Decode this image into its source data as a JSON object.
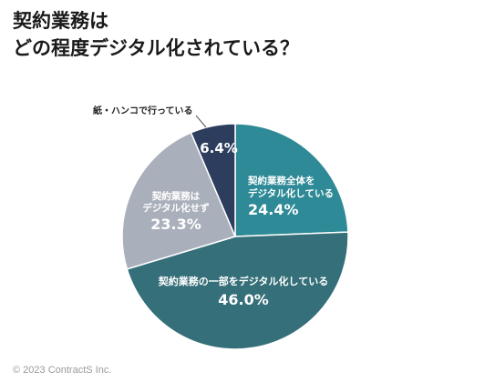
{
  "title_lines": [
    "契約業務は",
    "どの程度デジタル化されている？"
  ],
  "copyright": "© 2023 ContractS Inc.",
  "chart_data": {
    "type": "pie",
    "title": "契約業務はどの程度デジタル化されている？",
    "slices": [
      {
        "label": "契約業務全体をデジタル化している",
        "label_lines": [
          "契約業務全体を",
          "デジタル化している"
        ],
        "value": 24.4,
        "display": "24.4%",
        "color": "#2e8a96"
      },
      {
        "label": "契約業務の一部をデジタル化している",
        "label_lines": [
          "契約業務の一部をデジタル化している"
        ],
        "value": 46.0,
        "display": "46.0%",
        "color": "#356f79"
      },
      {
        "label": "契約業務はデジタル化せず",
        "label_lines": [
          "契約業務は",
          "デジタル化せず"
        ],
        "value": 23.3,
        "display": "23.3%",
        "color": "#aab0bb"
      },
      {
        "label": "紙・ハンコで行っている",
        "label_lines": [
          "紙・ハンコで行っている"
        ],
        "value": 6.4,
        "display": "6.4%",
        "color": "#2c3d5e"
      }
    ]
  }
}
